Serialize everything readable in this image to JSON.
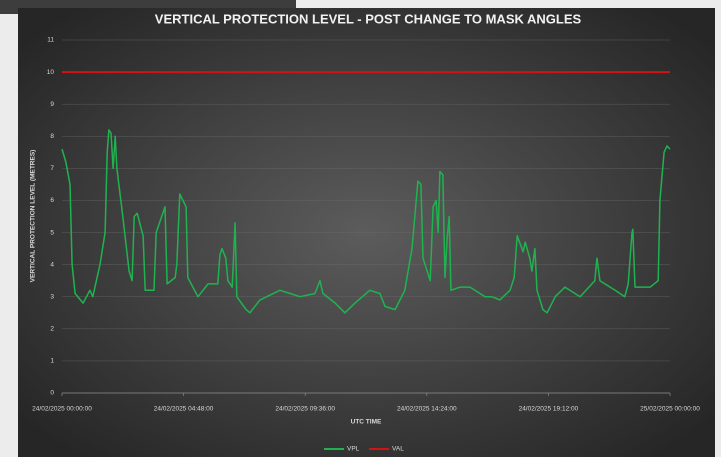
{
  "chart_data": {
    "type": "line",
    "title": "VERTICAL PROTECTION LEVEL - POST CHANGE TO MASK ANGLES",
    "xlabel": "UTC TIME",
    "ylabel": "VERTICAL PROTECTION LEVEL (METRES)",
    "xlim": [
      "24/02/2025 00:00:00",
      "25/02/2025 00:00:00"
    ],
    "xticks": [
      "24/02/2025 00:00:00",
      "24/02/2025 04:48:00",
      "24/02/2025 09:36:00",
      "24/02/2025 14:24:00",
      "24/02/2025 19:12:00",
      "25/02/2025 00:00:00"
    ],
    "ylim": [
      0,
      11
    ],
    "yticks": [
      0,
      1,
      2,
      3,
      4,
      5,
      6,
      7,
      8,
      9,
      10,
      11
    ],
    "grid": true,
    "legend": "bottom",
    "series": [
      {
        "name": "VPL",
        "color": "#1fb350",
        "x": [
          "24/02/2025 00:00:00",
          "24/02/2025 00:09:00",
          "24/02/2025 00:19:00",
          "24/02/2025 00:24:00",
          "24/02/2025 00:31:00",
          "24/02/2025 00:50:00",
          "24/02/2025 01:06:00",
          "24/02/2025 01:13:00",
          "24/02/2025 01:30:00",
          "24/02/2025 01:42:00",
          "24/02/2025 01:47:00",
          "24/02/2025 01:51:00",
          "24/02/2025 01:56:00",
          "24/02/2025 02:01:00",
          "24/02/2025 02:06:00",
          "24/02/2025 02:10:00",
          "24/02/2025 02:24:00",
          "24/02/2025 02:39:00",
          "24/02/2025 02:46:00",
          "24/02/2025 02:51:00",
          "24/02/2025 02:58:00",
          "24/02/2025 03:12:00",
          "24/02/2025 03:17:00",
          "24/02/2025 03:38:00",
          "24/02/2025 03:43:00",
          "24/02/2025 04:04:00",
          "24/02/2025 04:09:00",
          "24/02/2025 04:28:00",
          "24/02/2025 04:32:00",
          "24/02/2025 04:39:00",
          "24/02/2025 04:54:00",
          "24/02/2025 04:58:00",
          "24/02/2025 05:22:00",
          "24/02/2025 05:46:00",
          "24/02/2025 06:09:00",
          "24/02/2025 06:14:00",
          "24/02/2025 06:19:00",
          "24/02/2025 06:28:00",
          "24/02/2025 06:33:00",
          "24/02/2025 06:43:00",
          "24/02/2025 06:50:00",
          "24/02/2025 06:54:00",
          "24/02/2025 07:16:00",
          "24/02/2025 07:25:00",
          "24/02/2025 07:49:00",
          "24/02/2025 08:36:00",
          "24/02/2025 09:00:00",
          "24/02/2025 09:24:00",
          "24/02/2025 09:59:00",
          "24/02/2025 10:11:00",
          "24/02/2025 10:18:00",
          "24/02/2025 10:47:00",
          "24/02/2025 11:10:00",
          "24/02/2025 11:34:00",
          "24/02/2025 12:09:00",
          "24/02/2025 12:33:00",
          "24/02/2025 12:45:00",
          "24/02/2025 13:09:00",
          "24/02/2025 13:32:00",
          "24/02/2025 13:49:00",
          "24/02/2025 14:03:00",
          "24/02/2025 14:10:00",
          "24/02/2025 14:15:00",
          "24/02/2025 14:32:00",
          "24/02/2025 14:39:00",
          "24/02/2025 14:46:00",
          "24/02/2025 14:51:00",
          "24/02/2025 14:55:00",
          "24/02/2025 15:02:00",
          "24/02/2025 15:07:00",
          "24/02/2025 15:12:00",
          "24/02/2025 15:17:00",
          "24/02/2025 15:21:00",
          "24/02/2025 15:43:00",
          "24/02/2025 16:06:00",
          "24/02/2025 16:42:00",
          "24/02/2025 16:58:00",
          "24/02/2025 17:17:00",
          "24/02/2025 17:41:00",
          "24/02/2025 17:51:00",
          "24/02/2025 17:58:00",
          "24/02/2025 18:12:00",
          "24/02/2025 18:17:00",
          "24/02/2025 18:28:00",
          "24/02/2025 18:33:00",
          "24/02/2025 18:40:00",
          "24/02/2025 18:45:00",
          "24/02/2025 18:59:00",
          "24/02/2025 19:09:00",
          "24/02/2025 19:28:00",
          "24/02/2025 19:51:00",
          "24/02/2025 20:27:00",
          "24/02/2025 21:02:00",
          "24/02/2025 21:07:00",
          "24/02/2025 21:14:00",
          "24/02/2025 21:50:00",
          "24/02/2025 22:13:00",
          "24/02/2025 22:21:00",
          "24/02/2025 22:30:00",
          "24/02/2025 22:32:00",
          "24/02/2025 22:37:00",
          "24/02/2025 23:13:00",
          "24/02/2025 23:32:00",
          "24/02/2025 23:36:00",
          "24/02/2025 23:46:00",
          "24/02/2025 23:53:00",
          "25/02/2025 00:00:00"
        ],
        "values": [
          7.6,
          7.2,
          6.5,
          4.0,
          3.1,
          2.8,
          3.2,
          3.0,
          4.0,
          5.0,
          7.5,
          8.2,
          8.1,
          7.0,
          8.0,
          7.0,
          5.5,
          3.8,
          3.5,
          5.5,
          5.6,
          4.9,
          3.2,
          3.2,
          5.0,
          5.8,
          3.4,
          3.6,
          4.0,
          6.2,
          5.8,
          3.6,
          3.0,
          3.4,
          3.4,
          4.3,
          4.5,
          4.2,
          3.5,
          3.3,
          5.3,
          3.0,
          2.6,
          2.5,
          2.9,
          3.2,
          3.1,
          3.0,
          3.1,
          3.5,
          3.1,
          2.8,
          2.5,
          2.8,
          3.2,
          3.1,
          2.7,
          2.6,
          3.2,
          4.5,
          6.6,
          6.5,
          4.2,
          3.5,
          5.8,
          6.0,
          5.0,
          6.9,
          6.8,
          3.6,
          4.8,
          5.5,
          3.2,
          3.3,
          3.3,
          3.0,
          3.0,
          2.9,
          3.2,
          3.6,
          4.9,
          4.4,
          4.7,
          4.2,
          3.8,
          4.5,
          3.2,
          2.6,
          2.5,
          3.0,
          3.3,
          3.0,
          3.5,
          4.2,
          3.5,
          3.2,
          3.0,
          3.4,
          5.0,
          5.1,
          3.3,
          3.3,
          3.5,
          6.0,
          7.5,
          7.7,
          7.6
        ]
      },
      {
        "name": "VAL",
        "color": "#d01414",
        "x": [
          "24/02/2025 00:00:00",
          "25/02/2025 00:00:00"
        ],
        "values": [
          10,
          10
        ]
      }
    ]
  }
}
